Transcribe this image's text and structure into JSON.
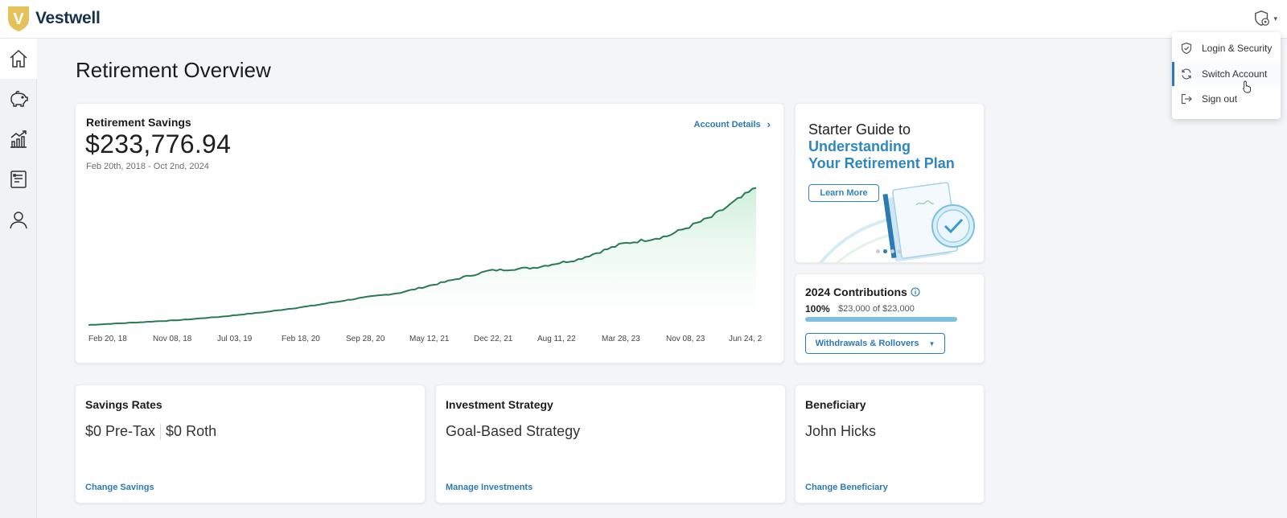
{
  "brand": {
    "logo_letter": "V",
    "name": "Vestwell",
    "gold": "#e6c15a"
  },
  "page": {
    "title": "Retirement Overview"
  },
  "nav": {
    "items": [
      "home-icon",
      "piggy-bank-icon",
      "growth-chart-icon",
      "document-list-icon",
      "person-icon"
    ],
    "active": 0
  },
  "savings": {
    "title": "Retirement Savings",
    "amount": "$233,776.94",
    "range": "Feb 20th, 2018 - Oct 2nd, 2024",
    "details_link": "Account Details",
    "chevron": "›"
  },
  "chart_data": {
    "type": "area",
    "title": "",
    "xlabel": "",
    "ylabel": "",
    "x_ticks": [
      "Feb 20, 18",
      "Nov 08, 18",
      "Jul 03, 19",
      "Feb 18, 20",
      "Sep 28, 20",
      "May 12, 21",
      "Dec 22, 21",
      "Aug 11, 22",
      "Mar 28, 23",
      "Nov 08, 23",
      "Jun 24, 2"
    ],
    "ylim": [
      0,
      240000
    ],
    "grid": false,
    "line_color": "#2a7a55",
    "fill_color": "#dff5e6",
    "series": [
      {
        "values": [
          4000,
          8000,
          12000,
          18000,
          26000,
          36000,
          48000,
          58000,
          76000,
          95000,
          100000,
          114000,
          140000,
          153000,
          185000,
          233776.94
        ]
      }
    ]
  },
  "promo": {
    "line1": "Starter Guide to",
    "line2": "Understanding",
    "line3": "Your Retirement Plan",
    "button": "Learn More",
    "accent": "#2f87bf",
    "slides": 4,
    "active_slide": 1
  },
  "contributions": {
    "title": "2024 Contributions",
    "percent": "100%",
    "detail": "$23,000 of $23,000",
    "progress": 1.0,
    "button": "Withdrawals & Rollovers",
    "caret": "▼"
  },
  "rates": {
    "title": "Savings Rates",
    "pretax": "$0 Pre-Tax",
    "roth": "$0 Roth",
    "link": "Change Savings"
  },
  "investment": {
    "title": "Investment Strategy",
    "value": "Goal-Based Strategy",
    "link": "Manage Investments"
  },
  "beneficiary": {
    "title": "Beneficiary",
    "value": "John Hicks",
    "link": "Change Beneficiary"
  },
  "account_menu": {
    "caret": "▾",
    "items": [
      {
        "label": "Login & Security",
        "icon": "shield-check-icon"
      },
      {
        "label": "Switch Account",
        "icon": "refresh-icon"
      },
      {
        "label": "Sign out",
        "icon": "sign-out-icon"
      }
    ],
    "hovered": 1
  }
}
